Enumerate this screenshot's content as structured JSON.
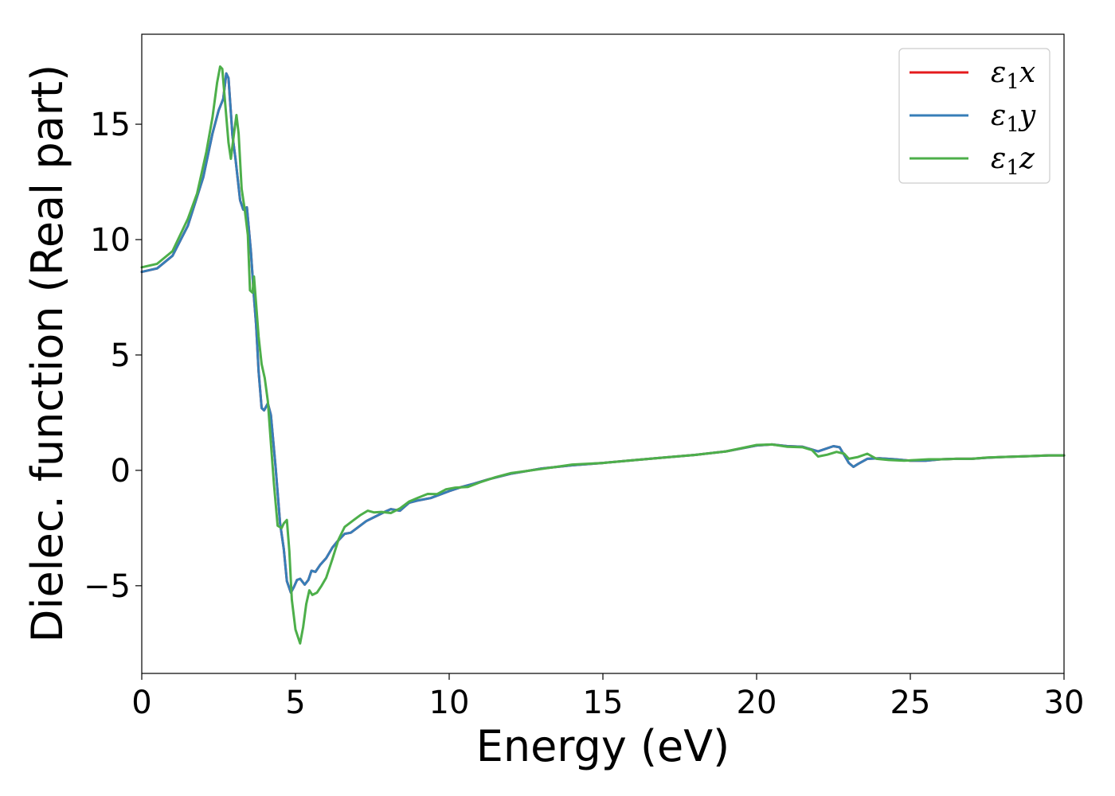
{
  "chart_data": {
    "type": "line",
    "xlabel": "Energy (eV)",
    "ylabel": "Dielec. function (Real part)",
    "xlim": [
      0,
      30
    ],
    "ylim": [
      -8.8,
      18.9
    ],
    "xticks": [
      0,
      5,
      10,
      15,
      20,
      25,
      30
    ],
    "yticks": [
      -5,
      0,
      5,
      10,
      15
    ],
    "xtick_labels": [
      "0",
      "5",
      "10",
      "15",
      "20",
      "25",
      "30"
    ],
    "ytick_labels": [
      "−5",
      "0",
      "5",
      "10",
      "15"
    ],
    "grid": false,
    "legend_position": "top-right",
    "series": [
      {
        "name": "ε1x",
        "legend": {
          "sym": "ε",
          "sub": "1",
          "var": "x"
        },
        "color": "#e41a1c",
        "points": [
          [
            0,
            8.6
          ],
          [
            0.5,
            8.75
          ],
          [
            1.0,
            9.3
          ],
          [
            1.5,
            10.6
          ],
          [
            2.0,
            12.7
          ],
          [
            2.3,
            14.6
          ],
          [
            2.5,
            15.6
          ],
          [
            2.65,
            16.1
          ],
          [
            2.75,
            17.2
          ],
          [
            2.82,
            17.0
          ],
          [
            2.95,
            14.5
          ],
          [
            3.05,
            13.5
          ],
          [
            3.2,
            11.7
          ],
          [
            3.3,
            11.3
          ],
          [
            3.42,
            11.4
          ],
          [
            3.55,
            9.5
          ],
          [
            3.65,
            7.5
          ],
          [
            3.72,
            6.3
          ],
          [
            3.8,
            4.3
          ],
          [
            3.9,
            2.7
          ],
          [
            3.98,
            2.6
          ],
          [
            4.1,
            2.9
          ],
          [
            4.2,
            2.4
          ],
          [
            4.35,
            0.2
          ],
          [
            4.5,
            -2.3
          ],
          [
            4.62,
            -3.4
          ],
          [
            4.72,
            -4.8
          ],
          [
            4.85,
            -5.3
          ],
          [
            4.95,
            -5.05
          ],
          [
            5.05,
            -4.75
          ],
          [
            5.15,
            -4.7
          ],
          [
            5.3,
            -4.95
          ],
          [
            5.42,
            -4.75
          ],
          [
            5.52,
            -4.35
          ],
          [
            5.65,
            -4.4
          ],
          [
            5.8,
            -4.1
          ],
          [
            6.0,
            -3.8
          ],
          [
            6.2,
            -3.35
          ],
          [
            6.35,
            -3.1
          ],
          [
            6.6,
            -2.75
          ],
          [
            6.8,
            -2.7
          ],
          [
            7.0,
            -2.5
          ],
          [
            7.3,
            -2.2
          ],
          [
            7.6,
            -2.0
          ],
          [
            7.9,
            -1.8
          ],
          [
            8.1,
            -1.68
          ],
          [
            8.4,
            -1.75
          ],
          [
            8.7,
            -1.4
          ],
          [
            9.0,
            -1.3
          ],
          [
            9.4,
            -1.2
          ],
          [
            9.7,
            -1.05
          ],
          [
            10.0,
            -0.9
          ],
          [
            10.4,
            -0.72
          ],
          [
            10.8,
            -0.58
          ],
          [
            11.3,
            -0.38
          ],
          [
            12.0,
            -0.15
          ],
          [
            13.0,
            0.08
          ],
          [
            14.0,
            0.22
          ],
          [
            15.0,
            0.32
          ],
          [
            16.0,
            0.44
          ],
          [
            17.0,
            0.56
          ],
          [
            18.0,
            0.67
          ],
          [
            19.0,
            0.82
          ],
          [
            20.0,
            1.08
          ],
          [
            20.5,
            1.12
          ],
          [
            21.0,
            1.05
          ],
          [
            21.5,
            1.02
          ],
          [
            22.0,
            0.82
          ],
          [
            22.5,
            1.05
          ],
          [
            22.7,
            1.0
          ],
          [
            23.0,
            0.32
          ],
          [
            23.15,
            0.15
          ],
          [
            23.3,
            0.28
          ],
          [
            23.6,
            0.5
          ],
          [
            24.0,
            0.52
          ],
          [
            24.5,
            0.48
          ],
          [
            25.0,
            0.42
          ],
          [
            25.5,
            0.42
          ],
          [
            26.0,
            0.48
          ],
          [
            26.5,
            0.5
          ],
          [
            27.0,
            0.5
          ],
          [
            27.5,
            0.55
          ],
          [
            28.0,
            0.58
          ],
          [
            28.5,
            0.6
          ],
          [
            29.0,
            0.62
          ],
          [
            29.5,
            0.65
          ],
          [
            30.0,
            0.65
          ]
        ]
      },
      {
        "name": "ε1y",
        "legend": {
          "sym": "ε",
          "sub": "1",
          "var": "y"
        },
        "color": "#377eb8",
        "points": [
          [
            0,
            8.6
          ],
          [
            0.5,
            8.75
          ],
          [
            1.0,
            9.3
          ],
          [
            1.5,
            10.6
          ],
          [
            2.0,
            12.7
          ],
          [
            2.3,
            14.6
          ],
          [
            2.5,
            15.6
          ],
          [
            2.65,
            16.1
          ],
          [
            2.75,
            17.2
          ],
          [
            2.82,
            17.0
          ],
          [
            2.95,
            14.5
          ],
          [
            3.05,
            13.5
          ],
          [
            3.2,
            11.7
          ],
          [
            3.3,
            11.3
          ],
          [
            3.42,
            11.4
          ],
          [
            3.55,
            9.5
          ],
          [
            3.65,
            7.5
          ],
          [
            3.72,
            6.3
          ],
          [
            3.8,
            4.3
          ],
          [
            3.9,
            2.7
          ],
          [
            3.98,
            2.6
          ],
          [
            4.1,
            2.9
          ],
          [
            4.2,
            2.4
          ],
          [
            4.35,
            0.2
          ],
          [
            4.5,
            -2.3
          ],
          [
            4.62,
            -3.4
          ],
          [
            4.72,
            -4.8
          ],
          [
            4.85,
            -5.3
          ],
          [
            4.95,
            -5.05
          ],
          [
            5.05,
            -4.75
          ],
          [
            5.15,
            -4.7
          ],
          [
            5.3,
            -4.95
          ],
          [
            5.42,
            -4.75
          ],
          [
            5.52,
            -4.35
          ],
          [
            5.65,
            -4.4
          ],
          [
            5.8,
            -4.1
          ],
          [
            6.0,
            -3.8
          ],
          [
            6.2,
            -3.35
          ],
          [
            6.35,
            -3.1
          ],
          [
            6.6,
            -2.75
          ],
          [
            6.8,
            -2.7
          ],
          [
            7.0,
            -2.5
          ],
          [
            7.3,
            -2.2
          ],
          [
            7.6,
            -2.0
          ],
          [
            7.9,
            -1.8
          ],
          [
            8.1,
            -1.68
          ],
          [
            8.4,
            -1.75
          ],
          [
            8.7,
            -1.4
          ],
          [
            9.0,
            -1.3
          ],
          [
            9.4,
            -1.2
          ],
          [
            9.7,
            -1.05
          ],
          [
            10.0,
            -0.9
          ],
          [
            10.4,
            -0.72
          ],
          [
            10.8,
            -0.58
          ],
          [
            11.3,
            -0.38
          ],
          [
            12.0,
            -0.15
          ],
          [
            13.0,
            0.08
          ],
          [
            14.0,
            0.22
          ],
          [
            15.0,
            0.32
          ],
          [
            16.0,
            0.44
          ],
          [
            17.0,
            0.56
          ],
          [
            18.0,
            0.67
          ],
          [
            19.0,
            0.82
          ],
          [
            20.0,
            1.08
          ],
          [
            20.5,
            1.12
          ],
          [
            21.0,
            1.05
          ],
          [
            21.5,
            1.02
          ],
          [
            22.0,
            0.82
          ],
          [
            22.5,
            1.05
          ],
          [
            22.7,
            1.0
          ],
          [
            23.0,
            0.32
          ],
          [
            23.15,
            0.15
          ],
          [
            23.3,
            0.28
          ],
          [
            23.6,
            0.5
          ],
          [
            24.0,
            0.52
          ],
          [
            24.5,
            0.48
          ],
          [
            25.0,
            0.42
          ],
          [
            25.5,
            0.42
          ],
          [
            26.0,
            0.48
          ],
          [
            26.5,
            0.5
          ],
          [
            27.0,
            0.5
          ],
          [
            27.5,
            0.55
          ],
          [
            28.0,
            0.58
          ],
          [
            28.5,
            0.6
          ],
          [
            29.0,
            0.62
          ],
          [
            29.5,
            0.65
          ],
          [
            30.0,
            0.65
          ]
        ]
      },
      {
        "name": "ε1z",
        "legend": {
          "sym": "ε",
          "sub": "1",
          "var": "z"
        },
        "color": "#4daf4a",
        "points": [
          [
            0,
            8.8
          ],
          [
            0.5,
            8.95
          ],
          [
            1.0,
            9.5
          ],
          [
            1.5,
            10.9
          ],
          [
            1.8,
            12.0
          ],
          [
            2.1,
            13.8
          ],
          [
            2.3,
            15.3
          ],
          [
            2.45,
            16.8
          ],
          [
            2.55,
            17.5
          ],
          [
            2.62,
            17.4
          ],
          [
            2.72,
            15.8
          ],
          [
            2.82,
            14.2
          ],
          [
            2.9,
            13.5
          ],
          [
            3.0,
            14.6
          ],
          [
            3.08,
            15.4
          ],
          [
            3.15,
            14.6
          ],
          [
            3.25,
            12.2
          ],
          [
            3.35,
            11.3
          ],
          [
            3.45,
            10.2
          ],
          [
            3.52,
            7.8
          ],
          [
            3.6,
            7.7
          ],
          [
            3.65,
            8.4
          ],
          [
            3.72,
            7.2
          ],
          [
            3.8,
            5.8
          ],
          [
            3.9,
            4.6
          ],
          [
            4.0,
            4.0
          ],
          [
            4.1,
            3.0
          ],
          [
            4.2,
            1.2
          ],
          [
            4.3,
            -0.6
          ],
          [
            4.42,
            -2.4
          ],
          [
            4.55,
            -2.5
          ],
          [
            4.62,
            -2.3
          ],
          [
            4.72,
            -2.15
          ],
          [
            4.8,
            -3.5
          ],
          [
            4.88,
            -5.6
          ],
          [
            5.0,
            -6.9
          ],
          [
            5.15,
            -7.5
          ],
          [
            5.25,
            -6.8
          ],
          [
            5.35,
            -5.8
          ],
          [
            5.45,
            -5.2
          ],
          [
            5.55,
            -5.4
          ],
          [
            5.7,
            -5.3
          ],
          [
            5.85,
            -5.0
          ],
          [
            6.0,
            -4.65
          ],
          [
            6.2,
            -3.85
          ],
          [
            6.4,
            -3.0
          ],
          [
            6.6,
            -2.45
          ],
          [
            6.9,
            -2.15
          ],
          [
            7.1,
            -1.95
          ],
          [
            7.35,
            -1.75
          ],
          [
            7.55,
            -1.82
          ],
          [
            7.8,
            -1.8
          ],
          [
            8.1,
            -1.85
          ],
          [
            8.4,
            -1.65
          ],
          [
            8.7,
            -1.35
          ],
          [
            9.0,
            -1.18
          ],
          [
            9.3,
            -1.02
          ],
          [
            9.6,
            -1.03
          ],
          [
            9.9,
            -0.82
          ],
          [
            10.2,
            -0.75
          ],
          [
            10.6,
            -0.72
          ],
          [
            11.0,
            -0.52
          ],
          [
            11.5,
            -0.3
          ],
          [
            12.0,
            -0.12
          ],
          [
            13.0,
            0.06
          ],
          [
            14.0,
            0.25
          ],
          [
            15.0,
            0.32
          ],
          [
            16.0,
            0.44
          ],
          [
            17.0,
            0.56
          ],
          [
            18.0,
            0.67
          ],
          [
            19.0,
            0.82
          ],
          [
            20.0,
            1.1
          ],
          [
            20.5,
            1.12
          ],
          [
            21.0,
            1.02
          ],
          [
            21.5,
            1.0
          ],
          [
            21.8,
            0.88
          ],
          [
            22.0,
            0.6
          ],
          [
            22.3,
            0.68
          ],
          [
            22.6,
            0.8
          ],
          [
            22.85,
            0.72
          ],
          [
            23.0,
            0.5
          ],
          [
            23.3,
            0.58
          ],
          [
            23.6,
            0.72
          ],
          [
            23.9,
            0.5
          ],
          [
            24.3,
            0.45
          ],
          [
            24.8,
            0.42
          ],
          [
            25.2,
            0.45
          ],
          [
            25.6,
            0.48
          ],
          [
            26.0,
            0.48
          ],
          [
            26.5,
            0.5
          ],
          [
            27.0,
            0.5
          ],
          [
            27.5,
            0.56
          ],
          [
            28.0,
            0.58
          ],
          [
            28.5,
            0.6
          ],
          [
            29.0,
            0.62
          ],
          [
            29.5,
            0.65
          ],
          [
            30.0,
            0.65
          ]
        ]
      }
    ]
  }
}
